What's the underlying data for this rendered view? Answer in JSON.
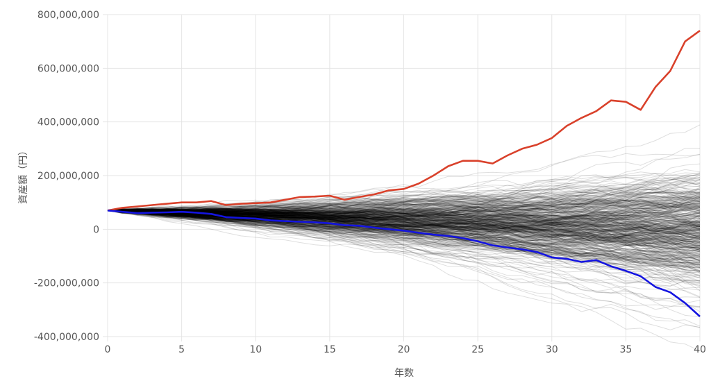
{
  "chart_data": {
    "type": "line",
    "xlabel": "年数",
    "ylabel": "資産額（円）",
    "xlim": [
      0,
      40
    ],
    "ylim": [
      -400000000,
      800000000
    ],
    "x_ticks": [
      0,
      5,
      10,
      15,
      20,
      25,
      30,
      35,
      40
    ],
    "x_tick_labels": [
      "0",
      "5",
      "10",
      "15",
      "20",
      "25",
      "30",
      "35",
      "40"
    ],
    "y_ticks": [
      -400000000,
      -200000000,
      0,
      200000000,
      400000000,
      600000000,
      800000000
    ],
    "y_tick_labels": [
      "-400,000,000",
      "-200,000,000",
      "0",
      "200,000,000",
      "400,000,000",
      "600,000,000",
      "800,000,000"
    ],
    "grid": true,
    "simulation_paths": {
      "count": 500,
      "start_value": 70000000,
      "color": "#000000",
      "opacity": 0.13
    },
    "series": [
      {
        "color": "#d9412b",
        "x": [
          0,
          1,
          2,
          3,
          4,
          5,
          6,
          7,
          8,
          9,
          10,
          11,
          12,
          13,
          14,
          15,
          16,
          17,
          18,
          19,
          20,
          21,
          22,
          23,
          24,
          25,
          26,
          27,
          28,
          29,
          30,
          31,
          32,
          33,
          34,
          35,
          36,
          37,
          38,
          39,
          40
        ],
        "values": [
          70000000,
          80000000,
          85000000,
          90000000,
          95000000,
          100000000,
          100000000,
          105000000,
          90000000,
          95000000,
          97000000,
          100000000,
          110000000,
          120000000,
          122000000,
          125000000,
          110000000,
          120000000,
          130000000,
          145000000,
          150000000,
          170000000,
          200000000,
          235000000,
          255000000,
          255000000,
          245000000,
          275000000,
          300000000,
          315000000,
          340000000,
          385000000,
          415000000,
          440000000,
          480000000,
          475000000,
          445000000,
          530000000,
          590000000,
          700000000,
          740000000
        ]
      },
      {
        "color": "#1414e0",
        "x": [
          0,
          1,
          2,
          3,
          4,
          5,
          6,
          7,
          8,
          9,
          10,
          11,
          12,
          13,
          14,
          15,
          16,
          17,
          18,
          19,
          20,
          21,
          22,
          23,
          24,
          25,
          26,
          27,
          28,
          29,
          30,
          31,
          32,
          33,
          34,
          35,
          36,
          37,
          38,
          39,
          40
        ],
        "values": [
          70000000,
          65000000,
          60000000,
          62000000,
          63000000,
          65000000,
          62000000,
          57000000,
          45000000,
          42000000,
          40000000,
          33000000,
          30000000,
          28000000,
          26000000,
          22000000,
          15000000,
          13000000,
          6000000,
          0,
          -5000000,
          -13000000,
          -20000000,
          -25000000,
          -33000000,
          -45000000,
          -60000000,
          -68000000,
          -75000000,
          -85000000,
          -105000000,
          -110000000,
          -122000000,
          -115000000,
          -138000000,
          -155000000,
          -175000000,
          -215000000,
          -235000000,
          -275000000,
          -325000000
        ]
      }
    ]
  }
}
